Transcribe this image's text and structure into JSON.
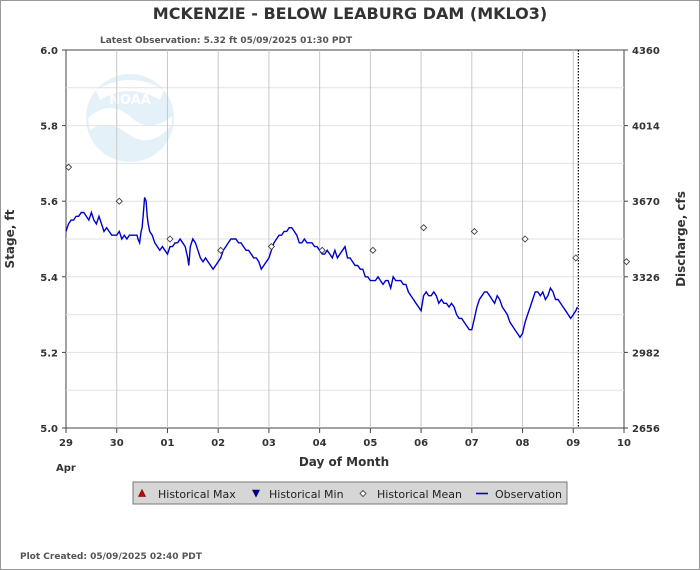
{
  "chart_data": {
    "type": "line",
    "title": "MCKENZIE - BELOW LEABURG DAM  (MKLO3)",
    "latest_observation": "Latest Observation: 5.32 ft 05/09/2025 01:30 PDT",
    "plot_created": "Plot Created: 05/09/2025 02:40 PDT",
    "xlabel": "Day of Month",
    "month_label": "Apr",
    "ylabel_left": "Stage, ft",
    "ylabel_right": "Discharge, cfs",
    "ylim": [
      5.0,
      6.0
    ],
    "xlim": [
      0,
      11
    ],
    "x_ticks": [
      {
        "x": 0,
        "label": "29"
      },
      {
        "x": 1,
        "label": "30"
      },
      {
        "x": 2,
        "label": "01"
      },
      {
        "x": 3,
        "label": "02"
      },
      {
        "x": 4,
        "label": "03"
      },
      {
        "x": 5,
        "label": "04"
      },
      {
        "x": 6,
        "label": "05"
      },
      {
        "x": 7,
        "label": "06"
      },
      {
        "x": 8,
        "label": "07"
      },
      {
        "x": 9,
        "label": "08"
      },
      {
        "x": 10,
        "label": "09"
      },
      {
        "x": 11,
        "label": "10"
      }
    ],
    "y_ticks_left": [
      {
        "y": 5.0,
        "label": "5.0"
      },
      {
        "y": 5.2,
        "label": "5.2"
      },
      {
        "y": 5.4,
        "label": "5.4"
      },
      {
        "y": 5.6,
        "label": "5.6"
      },
      {
        "y": 5.8,
        "label": "5.8"
      },
      {
        "y": 6.0,
        "label": "6.0"
      }
    ],
    "y_ticks_right": [
      {
        "y": 5.0,
        "label": "2656"
      },
      {
        "y": 5.2,
        "label": "2982"
      },
      {
        "y": 5.4,
        "label": "3326"
      },
      {
        "y": 5.6,
        "label": "3670"
      },
      {
        "y": 5.8,
        "label": "4014"
      },
      {
        "y": 6.0,
        "label": "4360"
      }
    ],
    "current_time_x": 10.1,
    "series": [
      {
        "name": "Observation",
        "color": "#0000cc",
        "points": [
          [
            0.0,
            5.52
          ],
          [
            0.05,
            5.54
          ],
          [
            0.1,
            5.55
          ],
          [
            0.15,
            5.55
          ],
          [
            0.2,
            5.56
          ],
          [
            0.25,
            5.56
          ],
          [
            0.3,
            5.57
          ],
          [
            0.35,
            5.57
          ],
          [
            0.4,
            5.56
          ],
          [
            0.45,
            5.55
          ],
          [
            0.5,
            5.57
          ],
          [
            0.55,
            5.55
          ],
          [
            0.6,
            5.54
          ],
          [
            0.65,
            5.56
          ],
          [
            0.7,
            5.54
          ],
          [
            0.75,
            5.52
          ],
          [
            0.8,
            5.53
          ],
          [
            0.85,
            5.52
          ],
          [
            0.9,
            5.51
          ],
          [
            0.95,
            5.51
          ],
          [
            1.0,
            5.51
          ],
          [
            1.05,
            5.52
          ],
          [
            1.1,
            5.5
          ],
          [
            1.15,
            5.51
          ],
          [
            1.2,
            5.5
          ],
          [
            1.25,
            5.51
          ],
          [
            1.3,
            5.51
          ],
          [
            1.35,
            5.51
          ],
          [
            1.4,
            5.51
          ],
          [
            1.42,
            5.5
          ],
          [
            1.45,
            5.49
          ],
          [
            1.48,
            5.52
          ],
          [
            1.5,
            5.53
          ],
          [
            1.52,
            5.56
          ],
          [
            1.55,
            5.61
          ],
          [
            1.58,
            5.6
          ],
          [
            1.6,
            5.56
          ],
          [
            1.62,
            5.54
          ],
          [
            1.65,
            5.52
          ],
          [
            1.7,
            5.51
          ],
          [
            1.75,
            5.49
          ],
          [
            1.8,
            5.48
          ],
          [
            1.85,
            5.47
          ],
          [
            1.9,
            5.48
          ],
          [
            1.95,
            5.47
          ],
          [
            2.0,
            5.46
          ],
          [
            2.05,
            5.48
          ],
          [
            2.1,
            5.48
          ],
          [
            2.15,
            5.49
          ],
          [
            2.2,
            5.49
          ],
          [
            2.25,
            5.5
          ],
          [
            2.3,
            5.49
          ],
          [
            2.35,
            5.48
          ],
          [
            2.4,
            5.45
          ],
          [
            2.42,
            5.43
          ],
          [
            2.45,
            5.48
          ],
          [
            2.5,
            5.5
          ],
          [
            2.55,
            5.49
          ],
          [
            2.6,
            5.47
          ],
          [
            2.65,
            5.45
          ],
          [
            2.7,
            5.44
          ],
          [
            2.75,
            5.45
          ],
          [
            2.8,
            5.44
          ],
          [
            2.85,
            5.43
          ],
          [
            2.9,
            5.42
          ],
          [
            2.95,
            5.43
          ],
          [
            3.0,
            5.44
          ],
          [
            3.05,
            5.45
          ],
          [
            3.1,
            5.47
          ],
          [
            3.15,
            5.48
          ],
          [
            3.2,
            5.49
          ],
          [
            3.25,
            5.5
          ],
          [
            3.3,
            5.5
          ],
          [
            3.35,
            5.5
          ],
          [
            3.4,
            5.49
          ],
          [
            3.45,
            5.49
          ],
          [
            3.5,
            5.48
          ],
          [
            3.55,
            5.47
          ],
          [
            3.6,
            5.47
          ],
          [
            3.65,
            5.46
          ],
          [
            3.7,
            5.45
          ],
          [
            3.75,
            5.45
          ],
          [
            3.8,
            5.44
          ],
          [
            3.85,
            5.42
          ],
          [
            3.9,
            5.43
          ],
          [
            3.95,
            5.44
          ],
          [
            4.0,
            5.45
          ],
          [
            4.05,
            5.47
          ],
          [
            4.1,
            5.49
          ],
          [
            4.15,
            5.5
          ],
          [
            4.2,
            5.51
          ],
          [
            4.25,
            5.51
          ],
          [
            4.3,
            5.52
          ],
          [
            4.35,
            5.52
          ],
          [
            4.4,
            5.53
          ],
          [
            4.45,
            5.53
          ],
          [
            4.5,
            5.52
          ],
          [
            4.55,
            5.51
          ],
          [
            4.6,
            5.49
          ],
          [
            4.65,
            5.49
          ],
          [
            4.7,
            5.5
          ],
          [
            4.75,
            5.49
          ],
          [
            4.8,
            5.49
          ],
          [
            4.85,
            5.49
          ],
          [
            4.9,
            5.48
          ],
          [
            4.95,
            5.48
          ],
          [
            5.0,
            5.47
          ],
          [
            5.05,
            5.46
          ],
          [
            5.1,
            5.46
          ],
          [
            5.15,
            5.47
          ],
          [
            5.2,
            5.46
          ],
          [
            5.25,
            5.45
          ],
          [
            5.3,
            5.47
          ],
          [
            5.35,
            5.45
          ],
          [
            5.4,
            5.46
          ],
          [
            5.45,
            5.47
          ],
          [
            5.5,
            5.48
          ],
          [
            5.55,
            5.45
          ],
          [
            5.6,
            5.45
          ],
          [
            5.65,
            5.44
          ],
          [
            5.7,
            5.43
          ],
          [
            5.75,
            5.43
          ],
          [
            5.8,
            5.42
          ],
          [
            5.85,
            5.42
          ],
          [
            5.9,
            5.4
          ],
          [
            5.95,
            5.4
          ],
          [
            6.0,
            5.39
          ],
          [
            6.05,
            5.39
          ],
          [
            6.1,
            5.39
          ],
          [
            6.15,
            5.4
          ],
          [
            6.2,
            5.39
          ],
          [
            6.25,
            5.38
          ],
          [
            6.3,
            5.39
          ],
          [
            6.35,
            5.39
          ],
          [
            6.4,
            5.37
          ],
          [
            6.45,
            5.4
          ],
          [
            6.5,
            5.39
          ],
          [
            6.55,
            5.39
          ],
          [
            6.6,
            5.39
          ],
          [
            6.65,
            5.38
          ],
          [
            6.7,
            5.38
          ],
          [
            6.75,
            5.36
          ],
          [
            6.8,
            5.35
          ],
          [
            6.85,
            5.34
          ],
          [
            6.9,
            5.33
          ],
          [
            6.95,
            5.32
          ],
          [
            7.0,
            5.31
          ],
          [
            7.05,
            5.35
          ],
          [
            7.1,
            5.36
          ],
          [
            7.15,
            5.35
          ],
          [
            7.2,
            5.35
          ],
          [
            7.25,
            5.36
          ],
          [
            7.3,
            5.35
          ],
          [
            7.35,
            5.33
          ],
          [
            7.4,
            5.34
          ],
          [
            7.45,
            5.33
          ],
          [
            7.5,
            5.33
          ],
          [
            7.55,
            5.32
          ],
          [
            7.6,
            5.33
          ],
          [
            7.65,
            5.32
          ],
          [
            7.7,
            5.3
          ],
          [
            7.75,
            5.29
          ],
          [
            7.8,
            5.29
          ],
          [
            7.85,
            5.28
          ],
          [
            7.9,
            5.27
          ],
          [
            7.95,
            5.26
          ],
          [
            8.0,
            5.26
          ],
          [
            8.05,
            5.29
          ],
          [
            8.1,
            5.32
          ],
          [
            8.15,
            5.34
          ],
          [
            8.2,
            5.35
          ],
          [
            8.25,
            5.36
          ],
          [
            8.3,
            5.36
          ],
          [
            8.35,
            5.35
          ],
          [
            8.4,
            5.34
          ],
          [
            8.45,
            5.33
          ],
          [
            8.5,
            5.35
          ],
          [
            8.55,
            5.34
          ],
          [
            8.6,
            5.32
          ],
          [
            8.65,
            5.31
          ],
          [
            8.7,
            5.3
          ],
          [
            8.75,
            5.28
          ],
          [
            8.8,
            5.27
          ],
          [
            8.85,
            5.26
          ],
          [
            8.9,
            5.25
          ],
          [
            8.95,
            5.24
          ],
          [
            9.0,
            5.25
          ],
          [
            9.05,
            5.28
          ],
          [
            9.1,
            5.3
          ],
          [
            9.15,
            5.32
          ],
          [
            9.2,
            5.34
          ],
          [
            9.25,
            5.36
          ],
          [
            9.3,
            5.36
          ],
          [
            9.35,
            5.35
          ],
          [
            9.4,
            5.36
          ],
          [
            9.45,
            5.34
          ],
          [
            9.5,
            5.35
          ],
          [
            9.55,
            5.37
          ],
          [
            9.6,
            5.36
          ],
          [
            9.65,
            5.34
          ],
          [
            9.7,
            5.34
          ],
          [
            9.75,
            5.33
          ],
          [
            9.8,
            5.32
          ],
          [
            9.85,
            5.31
          ],
          [
            9.9,
            5.3
          ],
          [
            9.95,
            5.29
          ],
          [
            10.0,
            5.3
          ],
          [
            10.05,
            5.31
          ],
          [
            10.08,
            5.32
          ]
        ]
      },
      {
        "name": "Historical Mean",
        "color": "#555555",
        "points": [
          [
            0.05,
            5.69
          ],
          [
            1.05,
            5.6
          ],
          [
            2.05,
            5.5
          ],
          [
            3.05,
            5.47
          ],
          [
            4.05,
            5.48
          ],
          [
            5.05,
            5.47
          ],
          [
            6.05,
            5.47
          ],
          [
            7.05,
            5.53
          ],
          [
            8.05,
            5.52
          ],
          [
            9.05,
            5.5
          ],
          [
            10.05,
            5.45
          ],
          [
            11.05,
            5.44
          ]
        ]
      },
      {
        "name": "Historical Max",
        "color": "#cc0000",
        "points": []
      },
      {
        "name": "Historical Min",
        "color": "#000099",
        "points": []
      }
    ],
    "legend": {
      "placement": "bottom",
      "items": [
        {
          "label": "Historical Max",
          "marker": "triangle-up",
          "color": "#cc0000"
        },
        {
          "label": "Historical Min",
          "marker": "triangle-down",
          "color": "#000099"
        },
        {
          "label": "Historical Mean",
          "marker": "diamond",
          "color": "#555555"
        },
        {
          "label": "Observation",
          "marker": "line",
          "color": "#0000cc"
        }
      ]
    },
    "logo": {
      "text": "NOAA"
    }
  }
}
